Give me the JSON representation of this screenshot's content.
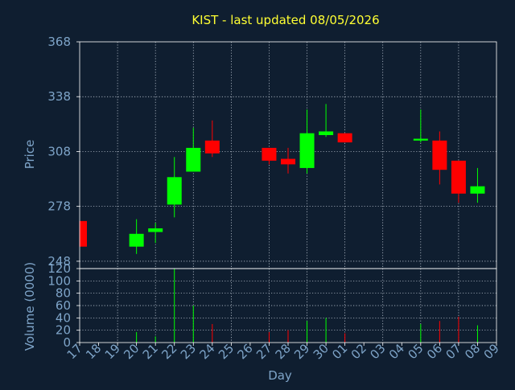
{
  "chart_data": {
    "type": "candlestick",
    "title": "KIST - last updated 08/05/2026",
    "xlabel": "Day",
    "colors": {
      "background": "#0f1e30",
      "up": "#00ff00",
      "down": "#ff0000",
      "text": "#7ea4c8",
      "title": "#ffff33",
      "grid": "#cfd8e3",
      "frame": "#ffffff"
    },
    "x_ticks": [
      "17",
      "18",
      "19",
      "20",
      "21",
      "22",
      "23",
      "24",
      "25",
      "26",
      "27",
      "28",
      "29",
      "30",
      "01",
      "02",
      "03",
      "04",
      "05",
      "06",
      "07",
      "08",
      "09"
    ],
    "price_panel": {
      "ylabel": "Price",
      "ylim": [
        244,
        368
      ],
      "yticks": [
        248,
        278,
        308,
        338,
        368
      ],
      "candles": [
        {
          "day": "17",
          "open": 270,
          "close": 256,
          "high": 270,
          "low": 256
        },
        {
          "day": "20",
          "open": 256,
          "close": 263,
          "high": 271,
          "low": 252
        },
        {
          "day": "21",
          "open": 264,
          "close": 266,
          "high": 269,
          "low": 258
        },
        {
          "day": "22",
          "open": 279,
          "close": 294,
          "high": 305,
          "low": 272
        },
        {
          "day": "23",
          "open": 297,
          "close": 310,
          "high": 321,
          "low": 297
        },
        {
          "day": "24",
          "open": 314,
          "close": 307,
          "high": 325,
          "low": 305
        },
        {
          "day": "27",
          "open": 310,
          "close": 303,
          "high": 310,
          "low": 301
        },
        {
          "day": "28",
          "open": 304,
          "close": 301,
          "high": 310,
          "low": 296
        },
        {
          "day": "29",
          "open": 299,
          "close": 318,
          "high": 331,
          "low": 296
        },
        {
          "day": "30",
          "open": 317,
          "close": 319,
          "high": 334,
          "low": 316
        },
        {
          "day": "01",
          "open": 318,
          "close": 313,
          "high": 318,
          "low": 313
        },
        {
          "day": "05",
          "open": 314,
          "close": 315,
          "high": 331,
          "low": 313
        },
        {
          "day": "06",
          "open": 314,
          "close": 298,
          "high": 319,
          "low": 290
        },
        {
          "day": "07",
          "open": 303,
          "close": 285,
          "high": 303,
          "low": 280
        },
        {
          "day": "08",
          "open": 285,
          "close": 289,
          "high": 299,
          "low": 280
        }
      ]
    },
    "volume_panel": {
      "ylabel": "Volume (0000)",
      "ylim": [
        0,
        120
      ],
      "yticks": [
        0,
        20,
        40,
        60,
        80,
        100,
        120
      ],
      "bars": [
        {
          "day": "20",
          "value": 17,
          "dir": "up"
        },
        {
          "day": "21",
          "value": 10,
          "dir": "up"
        },
        {
          "day": "22",
          "value": 120,
          "dir": "up"
        },
        {
          "day": "23",
          "value": 60,
          "dir": "up"
        },
        {
          "day": "24",
          "value": 30,
          "dir": "down"
        },
        {
          "day": "27",
          "value": 17,
          "dir": "down"
        },
        {
          "day": "28",
          "value": 20,
          "dir": "down"
        },
        {
          "day": "29",
          "value": 35,
          "dir": "up"
        },
        {
          "day": "30",
          "value": 40,
          "dir": "up"
        },
        {
          "day": "01",
          "value": 15,
          "dir": "down"
        },
        {
          "day": "05",
          "value": 30,
          "dir": "up"
        },
        {
          "day": "06",
          "value": 35,
          "dir": "down"
        },
        {
          "day": "07",
          "value": 42,
          "dir": "down"
        },
        {
          "day": "08",
          "value": 28,
          "dir": "up"
        }
      ]
    }
  }
}
